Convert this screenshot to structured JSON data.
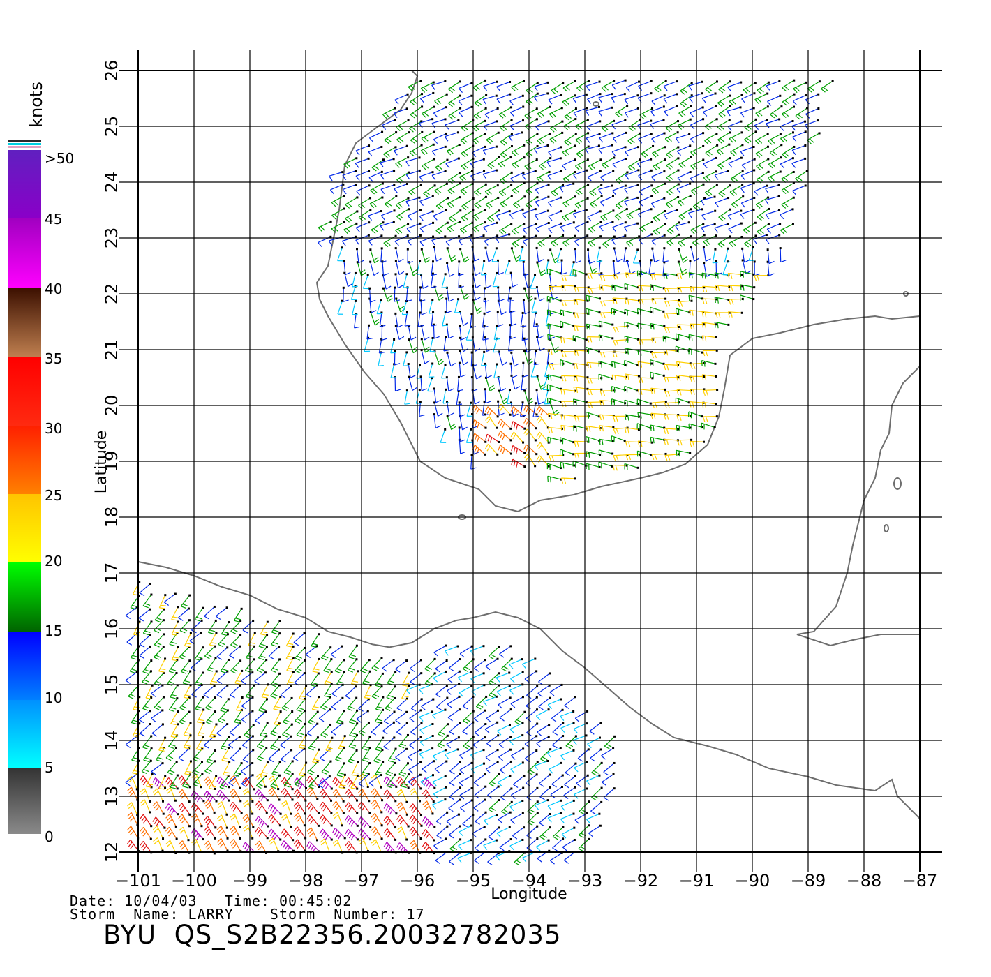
{
  "map": {
    "x_axis_label": "Longitude",
    "y_axis_label": "Latitude",
    "lon_ticks": [
      "-101",
      "-100",
      "-99",
      "-98",
      "-97",
      "-96",
      "-95",
      "-94",
      "-93",
      "-92",
      "-91",
      "-90",
      "-89",
      "-88",
      "-87"
    ],
    "lat_ticks": [
      "26",
      "25",
      "24",
      "23",
      "22",
      "21",
      "20",
      "19",
      "18",
      "17",
      "16",
      "15",
      "14",
      "13",
      "12"
    ],
    "lon_range": [
      -101,
      -87
    ],
    "lat_range": [
      12,
      26
    ],
    "grid": true,
    "coastline_color": "#6e6e6e"
  },
  "legend": {
    "title": "knots",
    "labels": [
      ">50",
      "45",
      "40",
      "35",
      "30",
      "25",
      "20",
      "15",
      "10",
      "5",
      "0"
    ],
    "bands": [
      {
        "range": "0-5",
        "top": "#333333",
        "bottom": "#8a8a8a"
      },
      {
        "range": "5-10",
        "top": "#0090ff",
        "bottom": "#00ffff"
      },
      {
        "range": "10-15",
        "top": "#0000ff",
        "bottom": "#0080ff"
      },
      {
        "range": "15-20",
        "top": "#00ff00",
        "bottom": "#006400"
      },
      {
        "range": "20-25",
        "top": "#ffc400",
        "bottom": "#ffff00"
      },
      {
        "range": "25-30",
        "top": "#ff2000",
        "bottom": "#ff8000"
      },
      {
        "range": "30-35",
        "top": "#ff0000",
        "bottom": "#ff2a10"
      },
      {
        "range": "35-40",
        "top": "#3c1000",
        "bottom": "#c08050"
      },
      {
        "range": "40-50",
        "top": "#a000c0",
        "bottom": "#ff00ff"
      },
      {
        "range": ">50",
        "top": "#6020c0",
        "bottom": "#8a00c8"
      }
    ]
  },
  "footer": {
    "date_line": "Date: 10/04/03   Time: 00:45:02",
    "storm_line": "Storm  Name: LARRY    Storm  Number: 17",
    "title": "BYU  QS_S2B22356.20032782035"
  }
}
